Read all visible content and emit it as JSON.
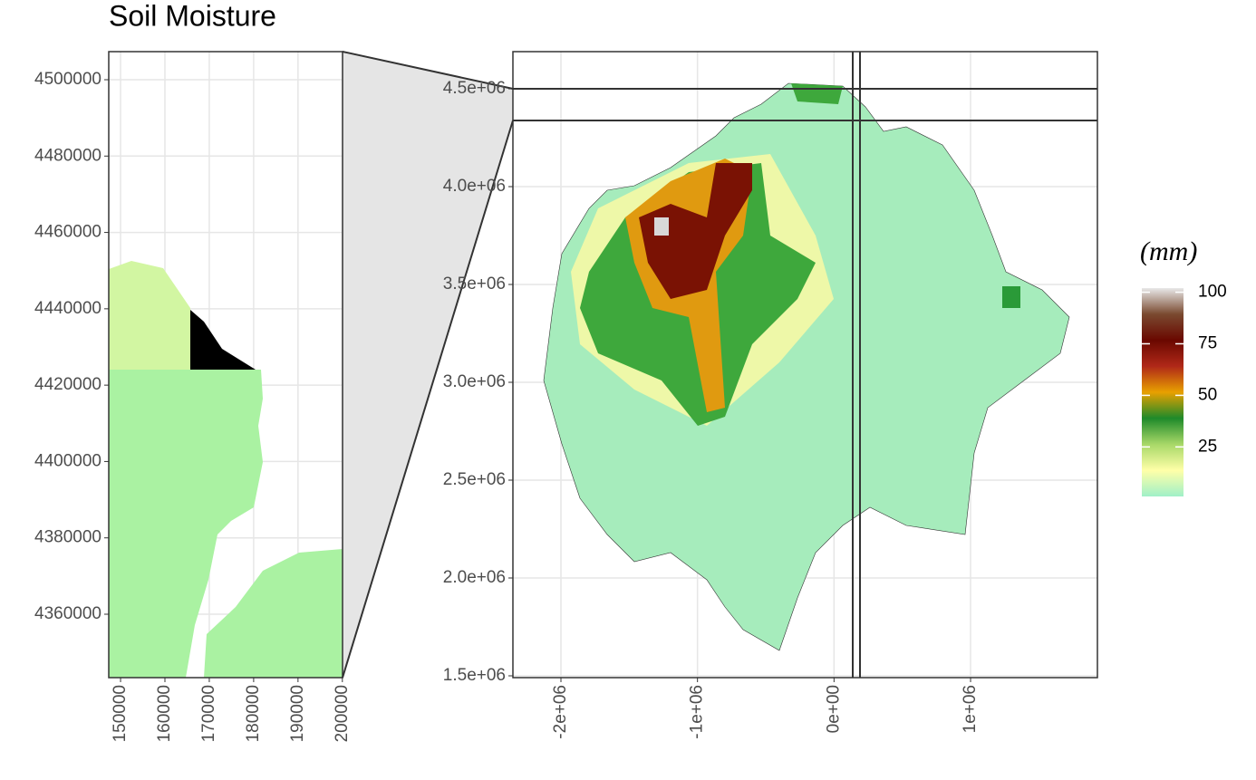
{
  "title": "Soil Moisture",
  "panels": [
    {
      "xlim": [
        147336,
        200041
      ],
      "ylim": [
        4343389,
        4507356
      ],
      "xticks": [
        150000,
        160000,
        170000,
        180000,
        190000,
        200000
      ],
      "yticks": [
        4360000,
        4380000,
        4400000,
        4420000,
        4440000,
        4460000,
        4480000,
        4500000
      ]
    },
    {
      "xlim": [
        -2351700,
        1929000
      ],
      "ylim": [
        1490700,
        4689800
      ],
      "xticks": [
        {
          "value": -2000000,
          "label": "-2e+06"
        },
        {
          "value": -1000000,
          "label": "-1e+06"
        },
        {
          "value": 0,
          "label": "0e+00"
        },
        {
          "value": 1000000,
          "label": "1e+06"
        }
      ],
      "yticks": [
        {
          "value": 1500000,
          "label": "1.5e+06"
        },
        {
          "value": 2000000,
          "label": "2.0e+06"
        },
        {
          "value": 2500000,
          "label": "2.5e+06"
        },
        {
          "value": 3000000,
          "label": "3.0e+06"
        },
        {
          "value": 3500000,
          "label": "3.5e+06"
        },
        {
          "value": 4000000,
          "label": "4.0e+06"
        },
        {
          "value": 4500000,
          "label": "4.5e+06"
        }
      ]
    }
  ],
  "legend": {
    "title": "(mm)",
    "limits": [
      1,
      102
    ],
    "ticks": [
      25,
      50,
      75,
      100
    ],
    "colors": [
      "#a0f0c8",
      "#ffffa8",
      "#a8d868",
      "#1e8a2a",
      "#e8a000",
      "#b02818",
      "#6a0800",
      "#7a4a30",
      "#e8e8e8"
    ]
  }
}
